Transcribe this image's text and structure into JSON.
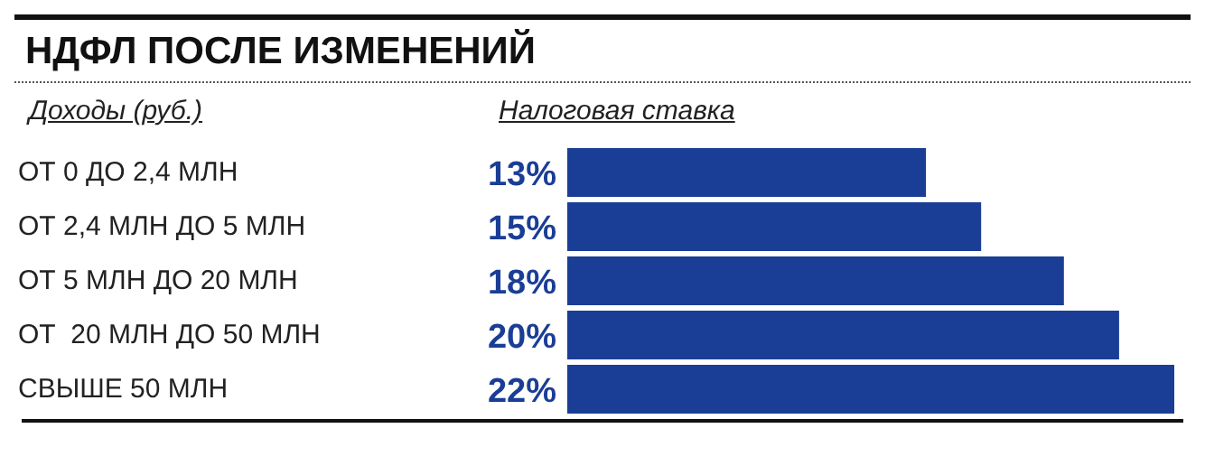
{
  "chart_data": {
    "type": "bar",
    "orientation": "horizontal",
    "title": "НДФЛ ПОСЛЕ ИЗМЕНЕНИЙ",
    "ylabel": "Доходы (руб.)",
    "xlabel": "Налоговая ставка",
    "categories": [
      "ОТ 0 ДО 2,4 МЛН",
      "ОТ 2,4 МЛН ДО 5 МЛН",
      "ОТ 5 МЛН ДО 20 МЛН",
      "ОТ  20 МЛН ДО 50 МЛН",
      "СВЫШЕ 50 МЛН"
    ],
    "values": [
      13,
      15,
      18,
      20,
      22
    ],
    "value_labels": [
      "13%",
      "15%",
      "18%",
      "20%",
      "22%"
    ],
    "color": "#1a3e96",
    "xlim": [
      0,
      22
    ],
    "tick_labels": false
  }
}
